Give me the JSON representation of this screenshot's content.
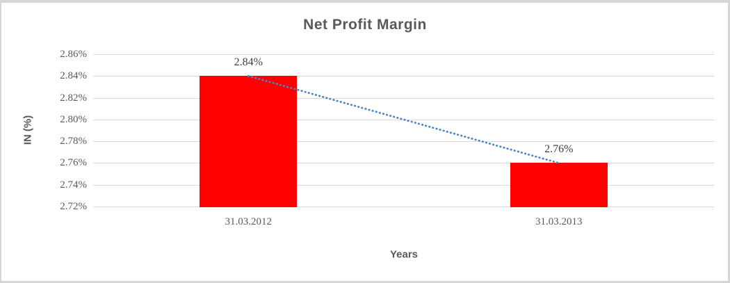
{
  "frame": {
    "background": "#FFFFFF",
    "border_color": "#D6D6D6"
  },
  "chart_data": {
    "type": "bar",
    "title": "Net Profit Margin",
    "xlabel": "Years",
    "ylabel": "IN (%)",
    "categories": [
      "31.03.2012",
      "31.03.2013"
    ],
    "values": [
      2.84,
      2.76
    ],
    "data_labels": [
      "2.84%",
      "2.76%"
    ],
    "ylim": [
      2.72,
      2.86
    ],
    "ytick_step": 0.02,
    "ytick_labels": [
      "2.86%",
      "2.84%",
      "2.82%",
      "2.80%",
      "2.78%",
      "2.76%",
      "2.74%",
      "2.72%"
    ],
    "grid": true,
    "legend": "none",
    "bar_color": "#FF0000",
    "gridline_color": "#D9D9D9",
    "title_color": "#595959",
    "tick_label_color": "#595959",
    "data_label_color": "#404040",
    "trendline": {
      "type": "linear",
      "style": "dotted",
      "color": "#4A86C8",
      "connects_values": [
        2.84,
        2.76
      ]
    }
  }
}
